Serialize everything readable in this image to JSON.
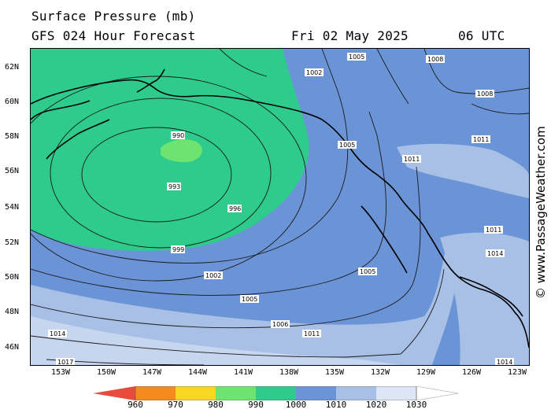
{
  "header": {
    "title": "Surface Pressure (mb)",
    "model": "GFS 024 Hour Forecast",
    "date": "Fri 02 May 2025",
    "time": "06 UTC"
  },
  "credit": "© www.PassageWeather.com",
  "lat_labels": [
    "62N",
    "60N",
    "58N",
    "56N",
    "54N",
    "52N",
    "50N",
    "48N",
    "46N"
  ],
  "lon_labels": [
    "153W",
    "150W",
    "147W",
    "144W",
    "141W",
    "138W",
    "135W",
    "132W",
    "129W",
    "126W",
    "123W"
  ],
  "colorbar": {
    "labels": [
      "960",
      "970",
      "980",
      "990",
      "1000",
      "1010",
      "1020",
      "1030"
    ],
    "colors": [
      "#e84a3c",
      "#f58a1f",
      "#f7d81e",
      "#6fe36f",
      "#2ecb8c",
      "#6b94d6",
      "#a8c0e6",
      "#dde6f5"
    ]
  },
  "isobar_labels": {
    "l990": "990",
    "l993": "993",
    "l996": "996",
    "l999": "999",
    "l1002": "1002",
    "l1005": "1005",
    "l1006": "1006",
    "l1008": "1008",
    "l1011": "1011",
    "l1014": "1014",
    "l1017": "1017"
  }
}
